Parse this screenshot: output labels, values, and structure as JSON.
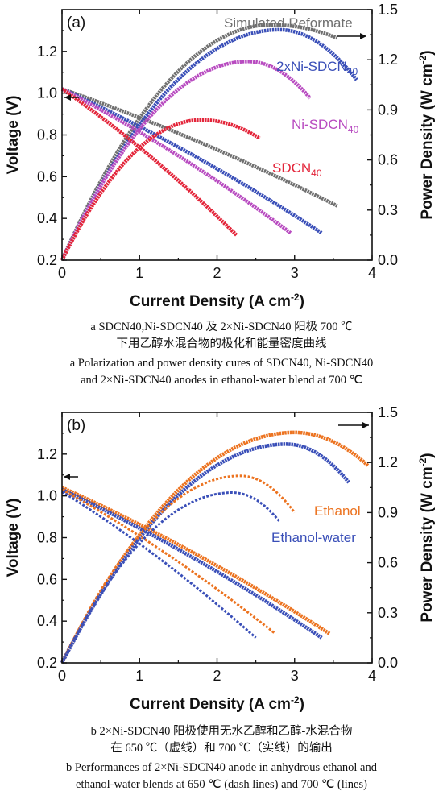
{
  "chart_data": [
    {
      "type": "line",
      "panel_label": "(a)",
      "xlabel": "Current Density (A cm",
      "xlabel_sup": "-2",
      "xlabel_end": ")",
      "ylabel": "Voltage (V)",
      "y2label": "Power Density (W cm",
      "y2label_sup": "-2",
      "y2label_end": ")",
      "xlim": [
        0,
        4
      ],
      "ylim": [
        0.2,
        1.4
      ],
      "y2lim": [
        0,
        1.5
      ],
      "xticks": [
        "0",
        "1",
        "2",
        "3",
        "4"
      ],
      "yticks": [
        "0.2",
        "0.4",
        "0.6",
        "0.8",
        "1.0",
        "1.2"
      ],
      "y2ticks": [
        "0.0",
        "0.3",
        "0.6",
        "0.9",
        "1.2",
        "1.5"
      ],
      "series": [
        {
          "name": "Simulated Reformate",
          "color": "#707070",
          "ocv": 1.02,
          "voltage_end": [
            3.55,
            0.46
          ],
          "power_peak": [
            2.7,
            1.41
          ],
          "power_end": [
            3.55,
            1.33
          ]
        },
        {
          "name": "2xNi-SDCN",
          "name_sub": "40",
          "color": "#3a4fb8",
          "ocv": 1.02,
          "voltage_end": [
            3.35,
            0.33
          ],
          "power_peak": [
            2.8,
            1.38
          ],
          "power_end": [
            3.8,
            1.08
          ]
        },
        {
          "name": "Ni-SDCN",
          "name_sub": "40",
          "color": "#b84bc0",
          "ocv": 1.02,
          "voltage_end": [
            2.95,
            0.33
          ],
          "power_peak": [
            2.4,
            1.19
          ],
          "power_end": [
            3.2,
            0.97
          ]
        },
        {
          "name": "SDCN",
          "name_sub": "40",
          "color": "#e3253a",
          "ocv": 1.02,
          "voltage_end": [
            2.25,
            0.32
          ],
          "power_peak": [
            1.8,
            0.84
          ],
          "power_end": [
            2.55,
            0.73
          ]
        }
      ]
    },
    {
      "type": "line",
      "panel_label": "(b)",
      "xlabel": "Current Density (A cm",
      "xlabel_sup": "-2",
      "xlabel_end": ")",
      "ylabel": "Voltage (V)",
      "y2label": "Power Density (W cm",
      "y2label_sup": "-2",
      "y2label_end": ")",
      "xlim": [
        0,
        4
      ],
      "ylim": [
        0.2,
        1.4
      ],
      "y2lim": [
        0,
        1.5
      ],
      "xticks": [
        "0",
        "1",
        "2",
        "3",
        "4"
      ],
      "yticks": [
        "0.2",
        "0.4",
        "0.6",
        "0.8",
        "1.0",
        "1.2"
      ],
      "y2ticks": [
        "0.0",
        "0.3",
        "0.6",
        "0.9",
        "1.2",
        "1.5"
      ],
      "series": [
        {
          "name": "Ethanol",
          "color": "#ec7320",
          "ocv": 1.04,
          "voltage_end": [
            3.45,
            0.34
          ],
          "power_peak": [
            3.0,
            1.38
          ],
          "power_end": [
            3.95,
            1.18
          ]
        },
        {
          "name": "Ethanol-water",
          "color": "#3a4fb8",
          "ocv": 1.03,
          "voltage_end": [
            3.35,
            0.32
          ],
          "power_peak": [
            2.9,
            1.31
          ],
          "power_end": [
            3.7,
            1.08
          ]
        },
        {
          "name": "",
          "color": "#ec7320",
          "dashed": true,
          "ocv": 1.03,
          "voltage_end": [
            2.75,
            0.34
          ],
          "power_peak": [
            2.3,
            1.12
          ],
          "power_end": [
            3.0,
            0.9
          ]
        },
        {
          "name": "",
          "color": "#3a4fb8",
          "dashed": true,
          "ocv": 1.02,
          "voltage_end": [
            2.5,
            0.32
          ],
          "power_peak": [
            2.2,
            1.02
          ],
          "power_end": [
            2.8,
            0.85
          ]
        }
      ]
    }
  ],
  "captions": {
    "a_cn_1": "a  SDCN40,Ni-SDCN40 及 2×Ni-SDCN40 阳极 700 ℃",
    "a_cn_2": "下用乙醇水混合物的极化和能量密度曲线",
    "a_en_1": "a  Polarization and power density cures of SDCN40, Ni-SDCN40",
    "a_en_2": "and 2×Ni-SDCN40 anodes in ethanol-water blend at 700 ℃",
    "b_cn_1": "b  2×Ni-SDCN40 阳极使用无水乙醇和乙醇-水混合物",
    "b_cn_2": "在 650 ℃（虚线）和 700 ℃（实线）的输出",
    "b_en_1": "b  Performances of 2×Ni-SDCN40 anode in anhydrous ethanol and",
    "b_en_2": "ethanol-water blends at 650 ℃ (dash lines) and 700 ℃ (lines)"
  }
}
